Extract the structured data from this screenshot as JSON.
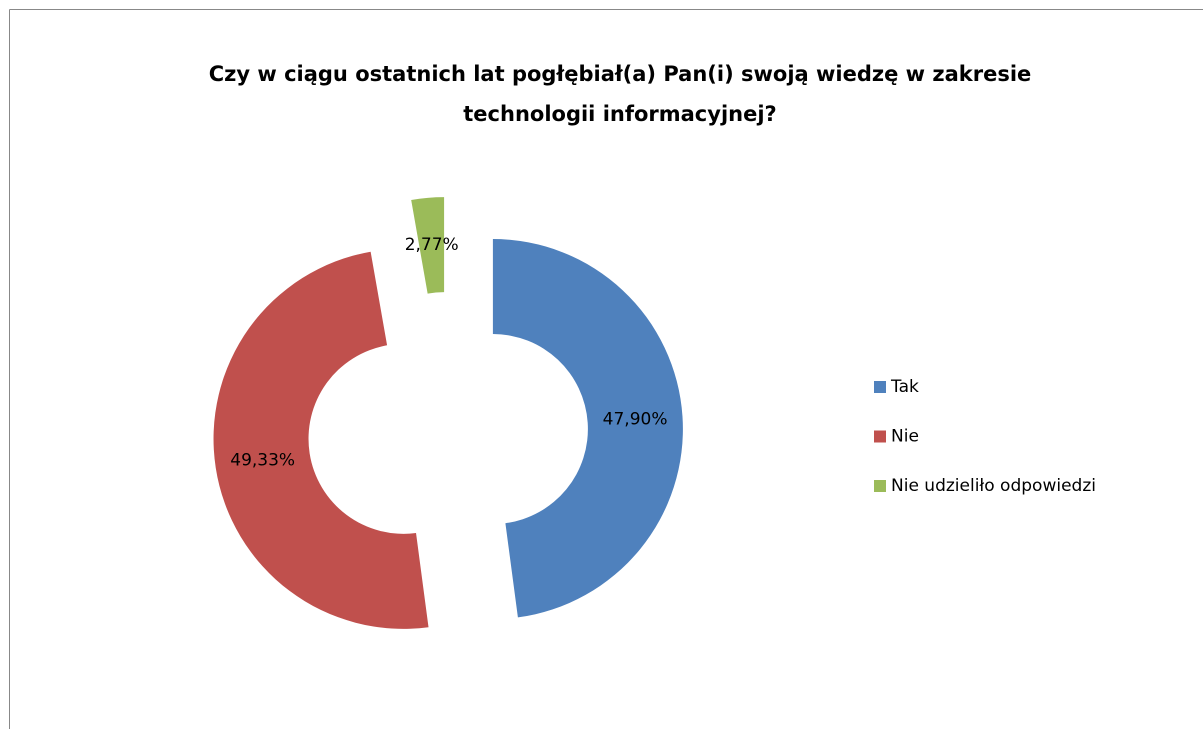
{
  "chart_data": {
    "type": "doughnut",
    "title": [
      "Czy w ciągu ostatnich lat pogłębiał(a) Pan(i) swoją wiedzę w zakresie",
      "technologii informacyjnej?"
    ],
    "categories": [
      "Tak",
      "Nie",
      "Nie udzieliło odpowiedzi"
    ],
    "values": [
      47.9,
      49.33,
      2.77
    ],
    "value_labels": [
      "47,90%",
      "49,33%",
      "2,77%"
    ],
    "colors": [
      "#4f81bd",
      "#c0504d",
      "#9bbb59"
    ],
    "legend": "right"
  }
}
